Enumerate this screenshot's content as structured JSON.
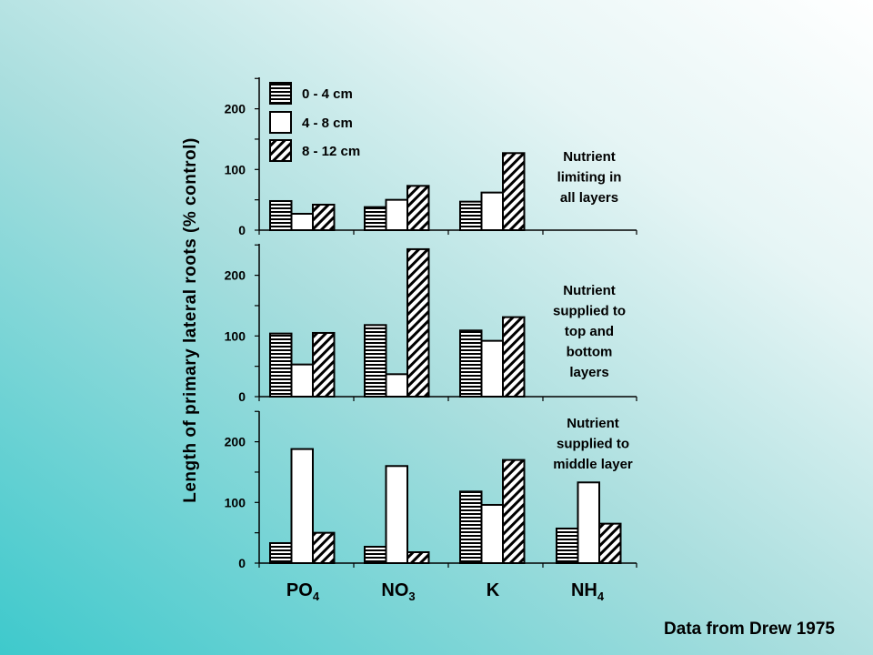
{
  "chart_data": {
    "type": "bar",
    "ylabel": "Length of primary lateral roots (% control)",
    "source": "Data from Drew 1975",
    "categories": [
      "PO",
      "NO",
      "K",
      "NH"
    ],
    "category_subscripts": [
      "4",
      "3",
      "",
      "4"
    ],
    "legend": [
      "0 - 4 cm",
      "4 - 8 cm",
      "8 - 12 cm"
    ],
    "yticks": [
      0,
      100,
      200
    ],
    "panels": [
      {
        "note": [
          "Nutrient",
          "limiting in",
          "all layers"
        ],
        "ylim": [
          0,
          255
        ],
        "values": [
          [
            48,
            27,
            42
          ],
          [
            38,
            50,
            73
          ],
          [
            47,
            62,
            127
          ],
          [
            null,
            null,
            null
          ]
        ]
      },
      {
        "note": [
          "Nutrient",
          "supplied to",
          "top and",
          "bottom",
          "layers"
        ],
        "ylim": [
          0,
          245
        ],
        "values": [
          [
            104,
            53,
            105
          ],
          [
            118,
            37,
            243
          ],
          [
            109,
            92,
            131
          ],
          [
            null,
            null,
            null
          ]
        ]
      },
      {
        "note": [
          "Nutrient",
          "supplied to",
          "middle layer"
        ],
        "ylim": [
          0,
          250
        ],
        "values": [
          [
            33,
            188,
            50
          ],
          [
            27,
            160,
            18
          ],
          [
            118,
            96,
            170
          ],
          [
            57,
            133,
            65
          ]
        ]
      }
    ]
  }
}
